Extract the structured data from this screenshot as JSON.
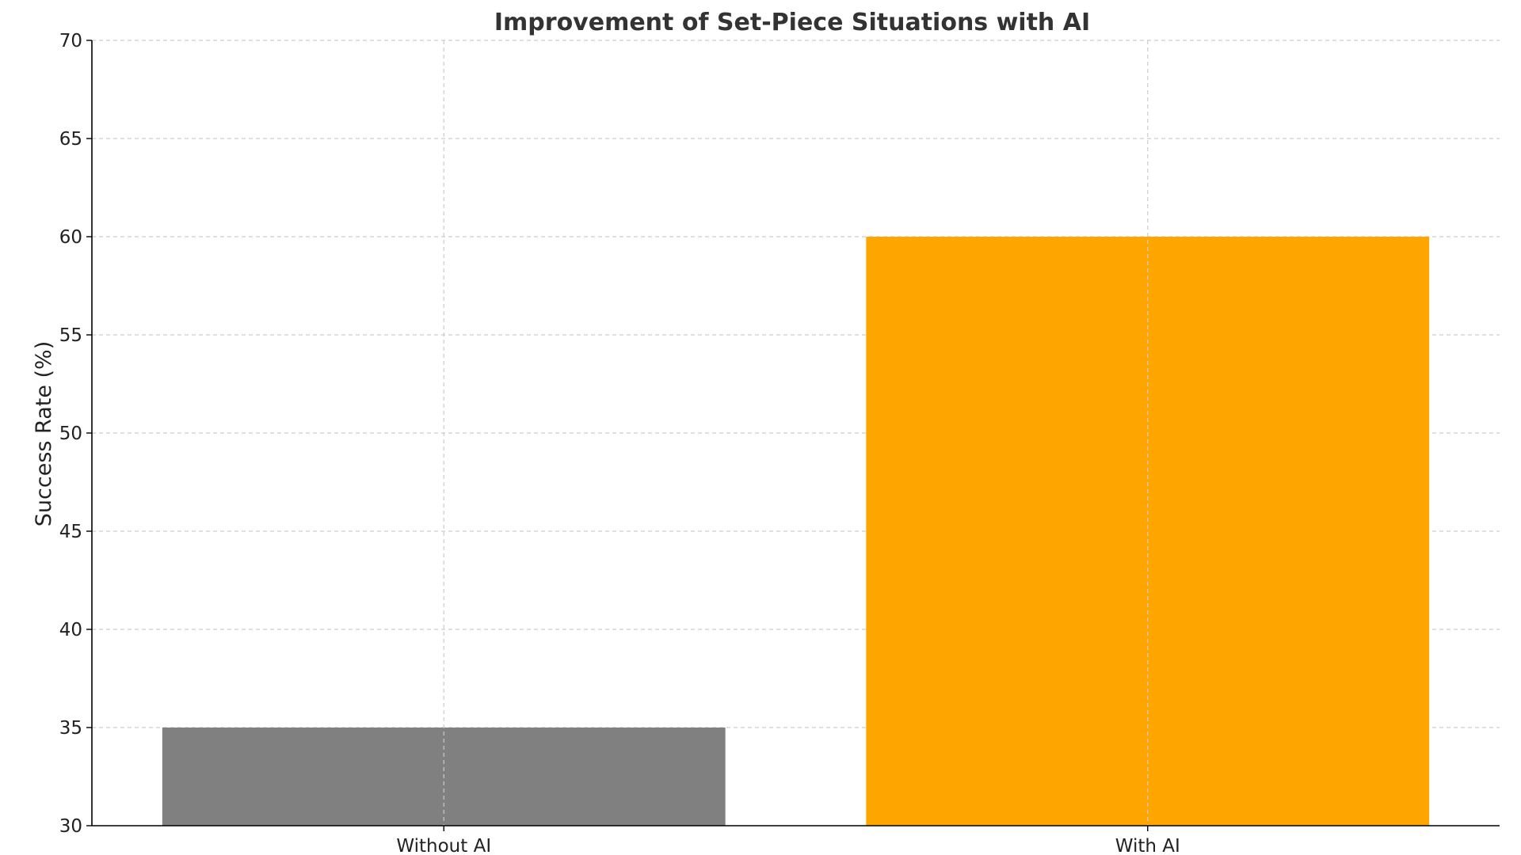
{
  "chart_data": {
    "type": "bar",
    "title": "Improvement of Set-Piece Situations with AI",
    "xlabel": "",
    "ylabel": "Success Rate (%)",
    "categories": [
      "Without AI",
      "With AI"
    ],
    "values": [
      35,
      60
    ],
    "colors": [
      "#808080",
      "#FFA500"
    ],
    "ylim": [
      30,
      70
    ],
    "yticks": [
      30,
      35,
      40,
      45,
      50,
      55,
      60,
      65,
      70
    ],
    "grid": true,
    "legend": "none"
  }
}
